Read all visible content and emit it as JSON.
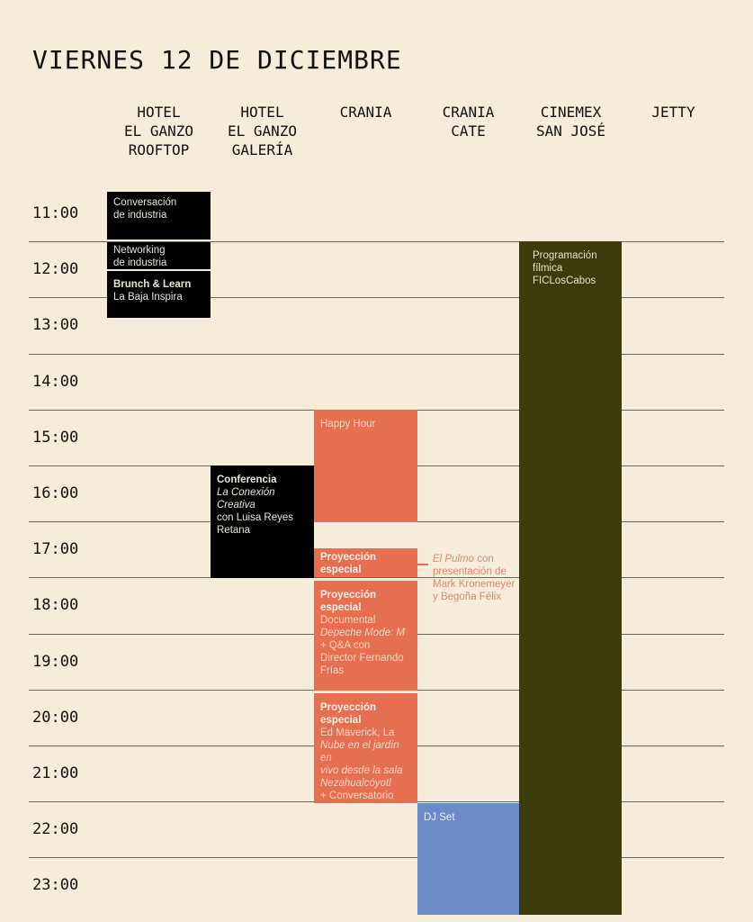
{
  "title": "VIERNES 12 DE DICIEMBRE",
  "venues": [
    "HOTEL\nEL GANZO\nROOFTOP",
    "HOTEL\nEL GANZO\nGALERÍA",
    "CRANIA",
    "CRANIA\nCATE",
    "CINEMEX\nSAN JOSÉ",
    "JETTY"
  ],
  "times": [
    "11:00",
    "12:00",
    "13:00",
    "14:00",
    "15:00",
    "16:00",
    "17:00",
    "18:00",
    "19:00",
    "20:00",
    "21:00",
    "22:00",
    "23:00"
  ],
  "events": {
    "conversacion": {
      "l1": "Conversación",
      "l2": "de industria"
    },
    "networking": {
      "l1": "Networking",
      "l2": "de industria"
    },
    "brunch": {
      "title": "Brunch & Learn",
      "sub": "La Baja Inspira"
    },
    "conferencia": {
      "title": "Conferencia",
      "i1": "La Conexión",
      "i2": "Creativa",
      "t1": "con Luisa Reyes",
      "t2": "Retana"
    },
    "happy": {
      "title": "Happy Hour"
    },
    "proy1": {
      "t1": "Proyección",
      "t2": "especial"
    },
    "proy1_note": {
      "italic": "El Pulmo",
      "rest": " con presentación de Mark Kronemeyer y Begoña Félix"
    },
    "proy2": {
      "t1": "Proyección",
      "t2": "especial",
      "l1": "Documental",
      "i1": "Depeche Mode: M",
      "l2": "+ Q&A con",
      "l3": "Director Fernando",
      "l4": "Frías"
    },
    "proy3": {
      "t1": "Proyección",
      "t2": "especial",
      "l1": "Ed Maverick, La",
      "i1": "Nube en el jardín en",
      "i2": "vivo desde la sala",
      "i3": "Nezahualcóyotl",
      "l2": "+ Conversatorio"
    },
    "djset": {
      "title": "DJ Set"
    },
    "programacion": {
      "l1": "Programación",
      "l2": "fílmica",
      "l3": "FICLosCabos"
    }
  },
  "colors": {
    "background": "#f5ecda",
    "orange": "#e66f50",
    "blue": "#6b8bc8",
    "olive": "#3b3b0b",
    "black": "#000000"
  }
}
